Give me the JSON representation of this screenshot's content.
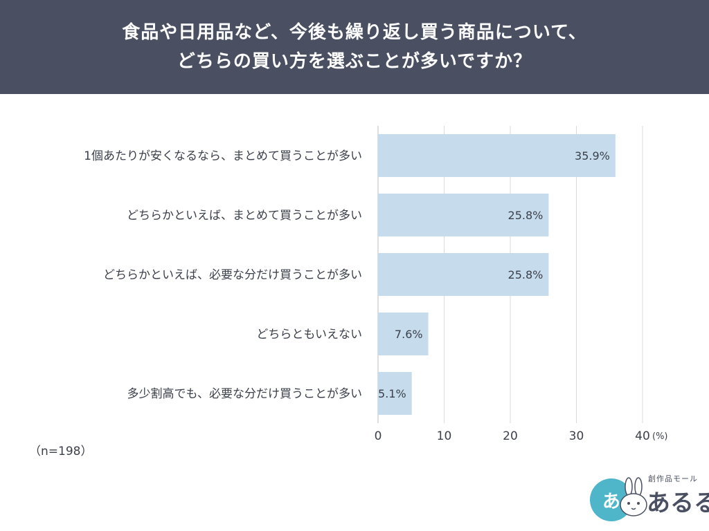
{
  "header": {
    "title_line1": "食品や日用品など、今後も繰り返し買う商品について、",
    "title_line2": "どちらの買い方を選ぶことが多いですか？"
  },
  "chart_data": {
    "type": "bar",
    "orientation": "horizontal",
    "categories": [
      "1個あたりが安くなるなら、まとめて買うことが多い",
      "どちらかといえば、まとめて買うことが多い",
      "どちらかといえば、必要な分だけ買うことが多い",
      "どちらともいえない",
      "多少割高でも、必要な分だけ買うことが多い"
    ],
    "values": [
      35.9,
      25.8,
      25.8,
      7.6,
      5.1
    ],
    "value_labels": [
      "35.9%",
      "25.8%",
      "25.8%",
      "7.6%",
      "5.1%"
    ],
    "xlim": [
      0,
      40
    ],
    "xticks": [
      "0",
      "10",
      "20",
      "30",
      "40"
    ],
    "unit": "(%)",
    "grid": true,
    "bar_color": "#c6dcec"
  },
  "note": "（n=198）",
  "logo": {
    "circle_text": "あ",
    "sub": "創作品モール",
    "main": "あるる"
  },
  "colors": {
    "header_bg": "#4a5061",
    "bar": "#c6dcec",
    "grid": "#d9d9d9",
    "logo_accent": "#4fb6c9"
  }
}
